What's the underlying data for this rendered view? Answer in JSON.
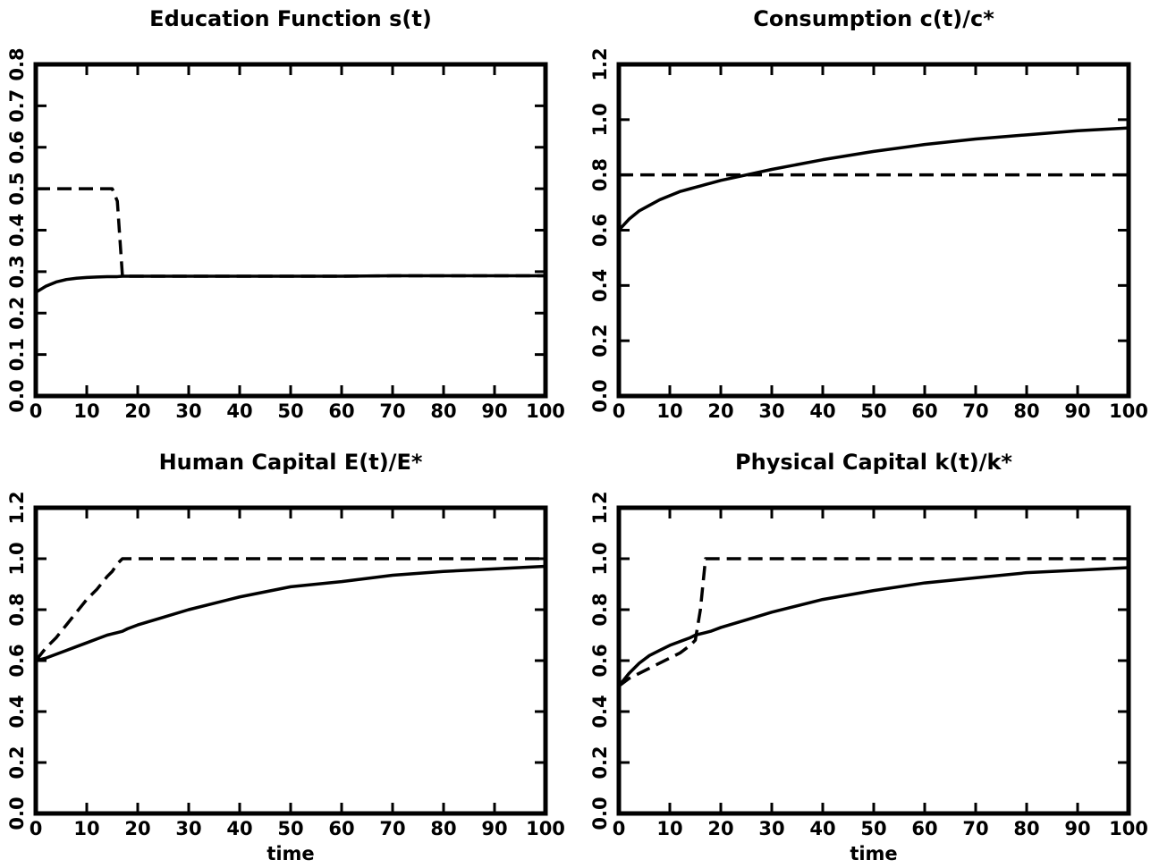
{
  "chart_data": [
    {
      "type": "line",
      "title": "Education Function s(t)",
      "x": [
        0,
        2,
        4,
        6,
        8,
        10,
        12,
        14,
        15,
        16,
        17,
        18,
        20,
        25,
        30,
        40,
        50,
        60,
        70,
        80,
        90,
        100
      ],
      "series": [
        {
          "color": "#000000",
          "line_style": "solid",
          "values": [
            0.25,
            0.265,
            0.275,
            0.281,
            0.284,
            0.286,
            0.287,
            0.288,
            0.288,
            0.288,
            0.289,
            0.289,
            0.289,
            0.289,
            0.289,
            0.289,
            0.289,
            0.289,
            0.29,
            0.29,
            0.29,
            0.29
          ]
        },
        {
          "color": "#000000",
          "line_style": "dashed",
          "values": [
            0.5,
            0.5,
            0.5,
            0.5,
            0.5,
            0.5,
            0.5,
            0.5,
            0.5,
            0.47,
            0.29,
            0.289,
            0.289,
            0.289,
            0.289,
            0.289,
            0.289,
            0.289,
            0.29,
            0.29,
            0.29,
            0.29
          ]
        }
      ],
      "xlim": [
        0,
        100
      ],
      "xticks": [
        0,
        10,
        20,
        30,
        40,
        50,
        60,
        70,
        80,
        90,
        100
      ],
      "ylim": [
        0,
        0.8
      ],
      "yticks": [
        {
          "value": 0,
          "label": "0.0"
        },
        0.1,
        0.2,
        0.3,
        0.4,
        0.5,
        0.6,
        0.7,
        0.8
      ]
    },
    {
      "type": "line",
      "title": "Consumption c(t)/c*",
      "x": [
        0,
        2,
        4,
        6,
        8,
        10,
        12,
        14,
        15,
        16,
        17,
        18,
        20,
        25,
        30,
        40,
        50,
        60,
        70,
        80,
        90,
        100
      ],
      "series": [
        {
          "color": "#000000",
          "line_style": "solid",
          "values": [
            0.6,
            0.64,
            0.67,
            0.69,
            0.71,
            0.725,
            0.74,
            0.75,
            0.755,
            0.76,
            0.765,
            0.77,
            0.78,
            0.8,
            0.82,
            0.855,
            0.885,
            0.91,
            0.93,
            0.945,
            0.96,
            0.97
          ]
        },
        {
          "color": "#000000",
          "line_style": "dashed",
          "values": [
            0.8,
            0.8,
            0.8,
            0.8,
            0.8,
            0.8,
            0.8,
            0.8,
            0.8,
            0.8,
            0.8,
            0.8,
            0.8,
            0.8,
            0.8,
            0.8,
            0.8,
            0.8,
            0.8,
            0.8,
            0.8,
            0.8
          ]
        }
      ],
      "xlim": [
        0,
        100
      ],
      "xticks": [
        0,
        10,
        20,
        30,
        40,
        50,
        60,
        70,
        80,
        90,
        100
      ],
      "ylim": [
        0,
        1.2
      ],
      "yticks": [
        {
          "value": 0,
          "label": "0.0"
        },
        0.2,
        0.4,
        0.6,
        0.8,
        {
          "value": 1,
          "label": "1.0"
        },
        1.2
      ]
    },
    {
      "type": "line",
      "title": "Human Capital E(t)/E*",
      "x_label": "time",
      "x": [
        0,
        2,
        4,
        6,
        8,
        10,
        12,
        14,
        15,
        16,
        17,
        18,
        20,
        25,
        30,
        40,
        50,
        60,
        70,
        80,
        90,
        100
      ],
      "series": [
        {
          "color": "#000000",
          "line_style": "solid",
          "values": [
            0.6,
            0.61,
            0.625,
            0.64,
            0.655,
            0.67,
            0.685,
            0.7,
            0.705,
            0.71,
            0.715,
            0.725,
            0.74,
            0.77,
            0.8,
            0.85,
            0.89,
            0.91,
            0.935,
            0.95,
            0.96,
            0.97
          ]
        },
        {
          "color": "#000000",
          "line_style": "dashed",
          "values": [
            0.6,
            0.65,
            0.69,
            0.74,
            0.79,
            0.84,
            0.88,
            0.93,
            0.95,
            0.98,
            1,
            1,
            1,
            1,
            1,
            1,
            1,
            1,
            1,
            1,
            1,
            1
          ]
        }
      ],
      "xlim": [
        0,
        100
      ],
      "xticks": [
        0,
        10,
        20,
        30,
        40,
        50,
        60,
        70,
        80,
        90,
        100
      ],
      "ylim": [
        0,
        1.2
      ],
      "yticks": [
        {
          "value": 0,
          "label": "0.0"
        },
        0.2,
        0.4,
        0.6,
        0.8,
        {
          "value": 1,
          "label": "1.0"
        },
        1.2
      ]
    },
    {
      "type": "line",
      "title": "Physical Capital k(t)/k*",
      "x_label": "time",
      "x": [
        0,
        2,
        4,
        6,
        8,
        10,
        12,
        14,
        15,
        16,
        17,
        18,
        20,
        25,
        30,
        40,
        50,
        60,
        70,
        80,
        90,
        100
      ],
      "series": [
        {
          "color": "#000000",
          "line_style": "solid",
          "values": [
            0.5,
            0.55,
            0.59,
            0.62,
            0.64,
            0.66,
            0.675,
            0.69,
            0.7,
            0.705,
            0.71,
            0.715,
            0.73,
            0.76,
            0.79,
            0.84,
            0.875,
            0.905,
            0.925,
            0.945,
            0.955,
            0.965
          ]
        },
        {
          "color": "#000000",
          "line_style": "dashed",
          "values": [
            0.5,
            0.53,
            0.55,
            0.57,
            0.59,
            0.61,
            0.63,
            0.66,
            0.68,
            0.8,
            1,
            1,
            1,
            1,
            1,
            1,
            1,
            1,
            1,
            1,
            1,
            1
          ]
        }
      ],
      "xlim": [
        0,
        100
      ],
      "xticks": [
        0,
        10,
        20,
        30,
        40,
        50,
        60,
        70,
        80,
        90,
        100
      ],
      "ylim": [
        0,
        1.2
      ],
      "yticks": [
        {
          "value": 0,
          "label": "0.0"
        },
        0.2,
        0.4,
        0.6,
        0.8,
        {
          "value": 1,
          "label": "1.0"
        },
        1.2
      ]
    }
  ]
}
